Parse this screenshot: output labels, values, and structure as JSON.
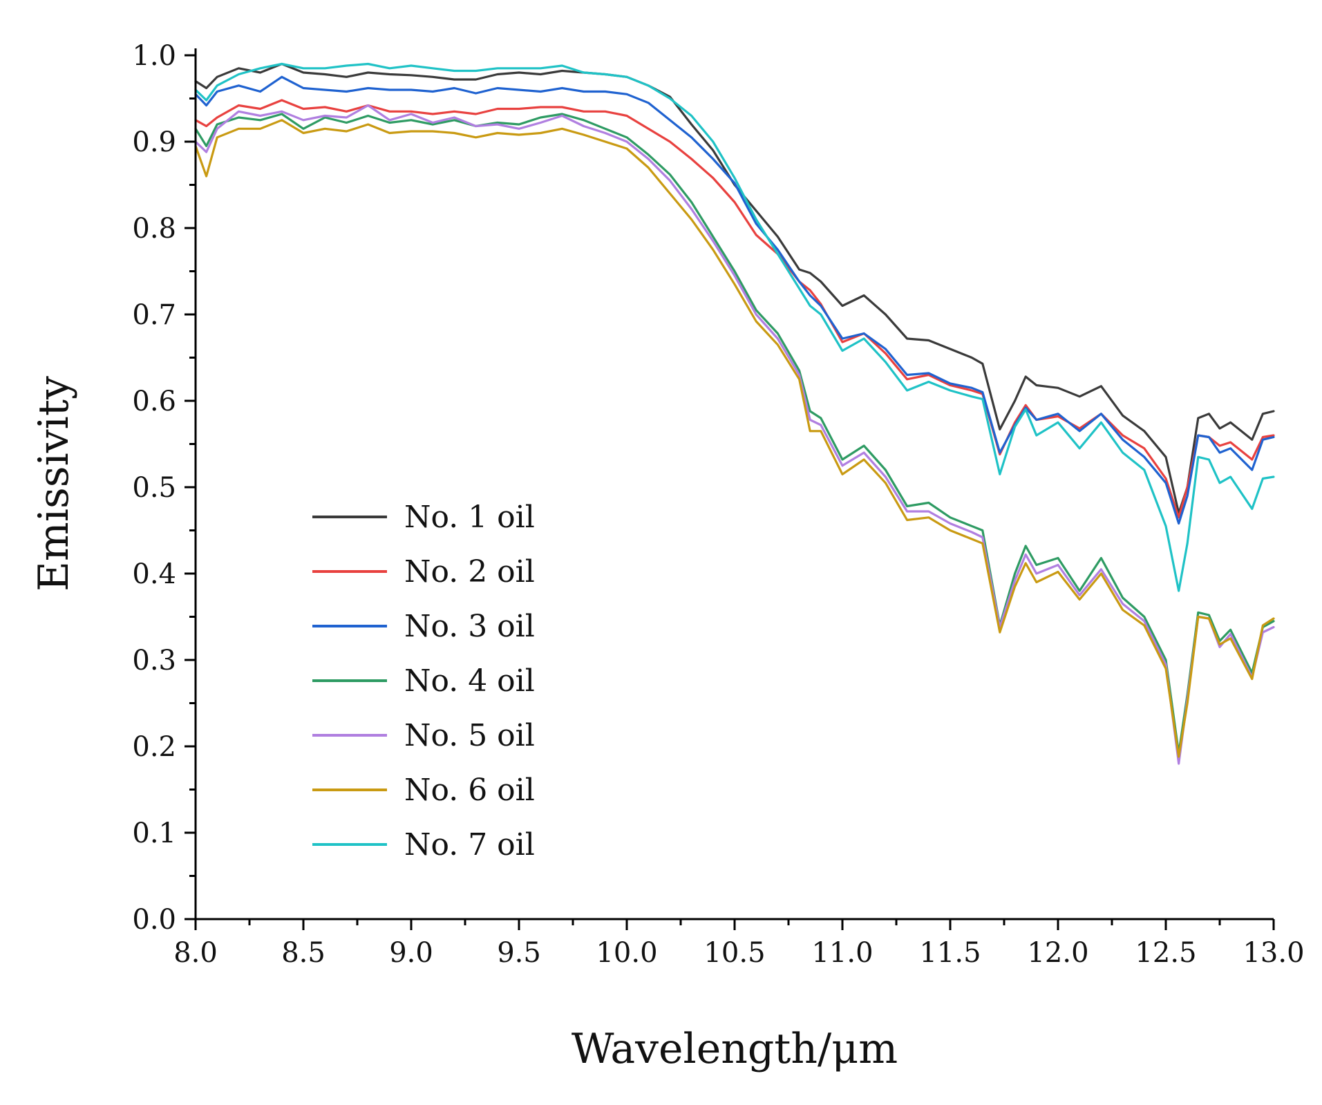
{
  "chart_data": {
    "type": "line",
    "title": "",
    "xlabel": "Wavelength/μm",
    "ylabel": "Emissivity",
    "xlim": [
      8.0,
      13.0
    ],
    "ylim": [
      0.0,
      1.0
    ],
    "x_ticks": [
      "8.0",
      "8.5",
      "9.0",
      "9.5",
      "10.0",
      "10.5",
      "11.0",
      "11.5",
      "12.0",
      "12.5",
      "13.0"
    ],
    "y_ticks": [
      "0.0",
      "0.1",
      "0.2",
      "0.3",
      "0.4",
      "0.5",
      "0.6",
      "0.7",
      "0.8",
      "0.9",
      "1.0"
    ],
    "legend_position": "center-left",
    "x": [
      8.0,
      8.05,
      8.1,
      8.2,
      8.3,
      8.4,
      8.5,
      8.6,
      8.7,
      8.8,
      8.9,
      9.0,
      9.1,
      9.2,
      9.3,
      9.4,
      9.5,
      9.6,
      9.7,
      9.8,
      9.9,
      10.0,
      10.1,
      10.2,
      10.3,
      10.4,
      10.5,
      10.6,
      10.7,
      10.8,
      10.85,
      10.9,
      11.0,
      11.1,
      11.2,
      11.3,
      11.4,
      11.5,
      11.6,
      11.65,
      11.73,
      11.8,
      11.85,
      11.9,
      12.0,
      12.1,
      12.2,
      12.3,
      12.4,
      12.5,
      12.56,
      12.6,
      12.65,
      12.7,
      12.75,
      12.8,
      12.9,
      12.95,
      13.0
    ],
    "series": [
      {
        "name": "No. 1 oil",
        "color": "#3a3a3a",
        "values": [
          0.97,
          0.962,
          0.975,
          0.985,
          0.98,
          0.99,
          0.98,
          0.978,
          0.975,
          0.98,
          0.978,
          0.977,
          0.975,
          0.972,
          0.972,
          0.978,
          0.98,
          0.978,
          0.982,
          0.98,
          0.978,
          0.975,
          0.965,
          0.952,
          0.92,
          0.89,
          0.85,
          0.82,
          0.79,
          0.752,
          0.748,
          0.738,
          0.71,
          0.722,
          0.7,
          0.672,
          0.67,
          0.66,
          0.65,
          0.643,
          0.567,
          0.6,
          0.628,
          0.618,
          0.615,
          0.605,
          0.617,
          0.583,
          0.565,
          0.535,
          0.47,
          0.5,
          0.58,
          0.585,
          0.568,
          0.575,
          0.555,
          0.585,
          0.588
        ]
      },
      {
        "name": "No. 2 oil",
        "color": "#e8413f",
        "values": [
          0.925,
          0.918,
          0.928,
          0.942,
          0.938,
          0.948,
          0.938,
          0.94,
          0.935,
          0.942,
          0.935,
          0.935,
          0.932,
          0.935,
          0.932,
          0.938,
          0.938,
          0.94,
          0.94,
          0.935,
          0.935,
          0.93,
          0.915,
          0.9,
          0.88,
          0.858,
          0.83,
          0.792,
          0.77,
          0.738,
          0.728,
          0.712,
          0.668,
          0.678,
          0.655,
          0.625,
          0.63,
          0.618,
          0.612,
          0.608,
          0.538,
          0.575,
          0.595,
          0.578,
          0.582,
          0.568,
          0.585,
          0.56,
          0.545,
          0.51,
          0.465,
          0.5,
          0.56,
          0.558,
          0.548,
          0.552,
          0.532,
          0.558,
          0.56
        ]
      },
      {
        "name": "No. 3 oil",
        "color": "#1f62d0",
        "values": [
          0.955,
          0.942,
          0.958,
          0.965,
          0.958,
          0.975,
          0.962,
          0.96,
          0.958,
          0.962,
          0.96,
          0.96,
          0.958,
          0.962,
          0.956,
          0.962,
          0.96,
          0.958,
          0.962,
          0.958,
          0.958,
          0.955,
          0.945,
          0.925,
          0.905,
          0.88,
          0.852,
          0.805,
          0.775,
          0.738,
          0.722,
          0.71,
          0.672,
          0.678,
          0.66,
          0.63,
          0.632,
          0.62,
          0.615,
          0.61,
          0.54,
          0.572,
          0.592,
          0.578,
          0.585,
          0.565,
          0.585,
          0.555,
          0.535,
          0.505,
          0.458,
          0.49,
          0.56,
          0.558,
          0.54,
          0.545,
          0.52,
          0.555,
          0.558
        ]
      },
      {
        "name": "No. 4 oil",
        "color": "#2e9b63",
        "values": [
          0.915,
          0.895,
          0.92,
          0.928,
          0.925,
          0.932,
          0.915,
          0.928,
          0.922,
          0.93,
          0.922,
          0.925,
          0.92,
          0.925,
          0.918,
          0.922,
          0.92,
          0.928,
          0.932,
          0.925,
          0.915,
          0.905,
          0.885,
          0.862,
          0.83,
          0.79,
          0.75,
          0.705,
          0.678,
          0.635,
          0.588,
          0.58,
          0.532,
          0.548,
          0.52,
          0.478,
          0.482,
          0.465,
          0.455,
          0.45,
          0.34,
          0.4,
          0.432,
          0.41,
          0.418,
          0.38,
          0.418,
          0.372,
          0.35,
          0.3,
          0.192,
          0.26,
          0.355,
          0.352,
          0.322,
          0.335,
          0.285,
          0.338,
          0.345
        ]
      },
      {
        "name": "No. 5 oil",
        "color": "#b07fe0",
        "values": [
          0.9,
          0.888,
          0.915,
          0.935,
          0.93,
          0.935,
          0.925,
          0.93,
          0.928,
          0.942,
          0.925,
          0.932,
          0.922,
          0.928,
          0.918,
          0.92,
          0.915,
          0.922,
          0.93,
          0.918,
          0.91,
          0.9,
          0.88,
          0.855,
          0.822,
          0.785,
          0.745,
          0.7,
          0.672,
          0.63,
          0.578,
          0.572,
          0.525,
          0.54,
          0.512,
          0.472,
          0.472,
          0.458,
          0.448,
          0.442,
          0.338,
          0.392,
          0.422,
          0.4,
          0.41,
          0.375,
          0.405,
          0.365,
          0.345,
          0.295,
          0.18,
          0.255,
          0.35,
          0.348,
          0.315,
          0.33,
          0.28,
          0.332,
          0.338
        ]
      },
      {
        "name": "No. 6 oil",
        "color": "#c99a12",
        "values": [
          0.895,
          0.86,
          0.905,
          0.915,
          0.915,
          0.925,
          0.91,
          0.915,
          0.912,
          0.92,
          0.91,
          0.912,
          0.912,
          0.91,
          0.905,
          0.91,
          0.908,
          0.91,
          0.915,
          0.908,
          0.9,
          0.892,
          0.87,
          0.84,
          0.81,
          0.775,
          0.735,
          0.692,
          0.665,
          0.625,
          0.565,
          0.565,
          0.515,
          0.532,
          0.505,
          0.462,
          0.465,
          0.45,
          0.44,
          0.435,
          0.332,
          0.385,
          0.412,
          0.39,
          0.402,
          0.37,
          0.4,
          0.358,
          0.34,
          0.29,
          0.188,
          0.25,
          0.35,
          0.348,
          0.318,
          0.325,
          0.278,
          0.34,
          0.348
        ]
      },
      {
        "name": "No. 7 oil",
        "color": "#1fc2c6",
        "values": [
          0.96,
          0.948,
          0.965,
          0.978,
          0.985,
          0.99,
          0.985,
          0.985,
          0.988,
          0.99,
          0.985,
          0.988,
          0.985,
          0.982,
          0.982,
          0.985,
          0.985,
          0.985,
          0.988,
          0.98,
          0.978,
          0.975,
          0.965,
          0.95,
          0.93,
          0.9,
          0.858,
          0.81,
          0.77,
          0.73,
          0.71,
          0.7,
          0.658,
          0.672,
          0.645,
          0.612,
          0.622,
          0.612,
          0.605,
          0.602,
          0.515,
          0.57,
          0.59,
          0.56,
          0.575,
          0.545,
          0.575,
          0.54,
          0.52,
          0.455,
          0.38,
          0.435,
          0.535,
          0.532,
          0.505,
          0.512,
          0.475,
          0.51,
          0.512
        ]
      }
    ]
  }
}
